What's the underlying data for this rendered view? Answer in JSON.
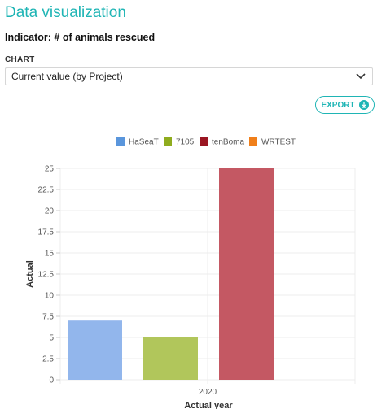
{
  "header": {
    "title": "Data visualization",
    "indicator": "Indicator: # of animals rescued"
  },
  "chart_selector": {
    "label": "CHART",
    "value": "Current value (by Project)"
  },
  "export_button": {
    "label": "EXPORT",
    "icon": "download-icon"
  },
  "chart_data": {
    "type": "bar",
    "categories": [
      "2020"
    ],
    "series": [
      {
        "name": "HaSeaT",
        "values": [
          7
        ],
        "color": "#92b6ec"
      },
      {
        "name": "7105",
        "values": [
          5
        ],
        "color": "#b1c65b"
      },
      {
        "name": "tenBoma",
        "values": [
          25
        ],
        "color": "#c45863"
      },
      {
        "name": "WRTEST",
        "values": [
          0
        ],
        "color": "#f28b30"
      }
    ],
    "legend_colors": [
      "#5a96dc",
      "#8fac1e",
      "#9a1622",
      "#f07f1a"
    ],
    "xlabel": "Actual year",
    "ylabel": "Actual",
    "ylim": [
      0,
      25
    ],
    "yticks": [
      "0",
      "2.5",
      "5",
      "7.5",
      "10",
      "12.5",
      "15",
      "17.5",
      "20",
      "22.5",
      "25"
    ],
    "legend_position": "top-center",
    "grid": true
  }
}
